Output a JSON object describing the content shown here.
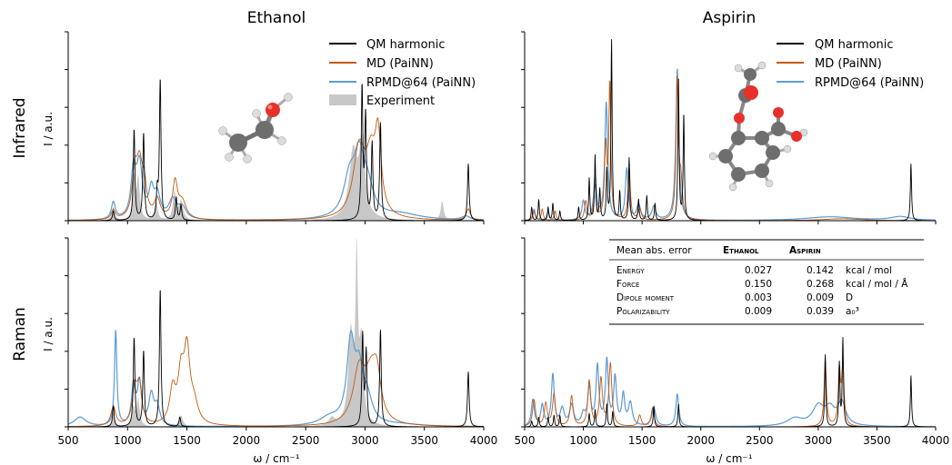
{
  "figure": {
    "column_titles": [
      "Ethanol",
      "Aspirin"
    ],
    "row_labels": [
      "Infrared",
      "Raman"
    ],
    "ylabel": "I / a.u.",
    "xlabel": "ω / cm⁻¹",
    "legend": [
      {
        "label": "QM harmonic",
        "color": "#000000",
        "kind": "line"
      },
      {
        "label": "MD (PaiNN)",
        "color": "#c55a11",
        "kind": "line"
      },
      {
        "label": "RPMD@64 (PaiNN)",
        "color": "#5b9bd5",
        "kind": "line"
      },
      {
        "label": "Experiment",
        "color": "#c8c8c8",
        "kind": "fill"
      }
    ],
    "molecule_icons": [
      "ethanol-molecule",
      "aspirin-molecule"
    ]
  },
  "table": {
    "headers": [
      "Mean abs. error",
      "Ethanol",
      "Aspirin",
      ""
    ],
    "rows": [
      {
        "label": "Energy",
        "ethanol": "0.027",
        "aspirin": "0.142",
        "unit": "kcal / mol"
      },
      {
        "label": "Force",
        "ethanol": "0.150",
        "aspirin": "0.268",
        "unit": "kcal / mol / Å"
      },
      {
        "label": "Dipole moment",
        "ethanol": "0.003",
        "aspirin": "0.009",
        "unit": "D"
      },
      {
        "label": "Polarizability",
        "ethanol": "0.009",
        "aspirin": "0.039",
        "unit": "a₀³"
      }
    ]
  },
  "chart_data": [
    {
      "type": "line",
      "title": "Ethanol",
      "row": "Infrared",
      "xlabel": "",
      "ylabel": "I / a.u.",
      "xlim": [
        500,
        4000
      ],
      "ylim": [
        0,
        1
      ],
      "xticks": [
        500,
        1000,
        1500,
        2000,
        2500,
        3000,
        3500,
        4000
      ],
      "legend_position": "top-right",
      "series": [
        {
          "name": "QM harmonic",
          "color": "#000000",
          "width": 0.9,
          "peaks": [
            [
              880,
              0.05,
              8
            ],
            [
              1055,
              0.48,
              8
            ],
            [
              1135,
              0.46,
              8
            ],
            [
              1250,
              0.14,
              8
            ],
            [
              1275,
              0.74,
              8
            ],
            [
              1410,
              0.12,
              8
            ],
            [
              1450,
              0.08,
              8
            ],
            [
              2975,
              0.69,
              8
            ],
            [
              3005,
              0.54,
              8
            ],
            [
              3060,
              0.4,
              8
            ],
            [
              3130,
              0.51,
              8
            ],
            [
              3870,
              0.3,
              8
            ]
          ]
        },
        {
          "name": "MD (PaiNN)",
          "color": "#c55a11",
          "width": 0.9,
          "peaks": [
            [
              880,
              0.05,
              20
            ],
            [
              1060,
              0.22,
              25
            ],
            [
              1100,
              0.26,
              30
            ],
            [
              1140,
              0.15,
              25
            ],
            [
              1250,
              0.1,
              30
            ],
            [
              1400,
              0.19,
              25
            ],
            [
              1460,
              0.09,
              40
            ],
            [
              2950,
              0.36,
              60
            ],
            [
              3050,
              0.28,
              50
            ],
            [
              3110,
              0.38,
              30
            ],
            [
              3870,
              0.06,
              20
            ]
          ]
        },
        {
          "name": "RPMD@64 (PaiNN)",
          "color": "#5b9bd5",
          "width": 1.2,
          "peaks": [
            [
              880,
              0.09,
              20
            ],
            [
              1050,
              0.24,
              25
            ],
            [
              1100,
              0.28,
              30
            ],
            [
              1200,
              0.14,
              25
            ],
            [
              1250,
              0.12,
              30
            ],
            [
              1380,
              0.1,
              40
            ],
            [
              1460,
              0.06,
              40
            ],
            [
              2870,
              0.2,
              60
            ],
            [
              2950,
              0.28,
              50
            ],
            [
              3020,
              0.15,
              60
            ],
            [
              3300,
              0.03,
              200
            ],
            [
              3850,
              0.02,
              40
            ]
          ]
        },
        {
          "name": "Experiment",
          "color": "#c8c8c8",
          "fill": true,
          "peaks": [
            [
              880,
              0.07,
              15
            ],
            [
              1055,
              0.22,
              12
            ],
            [
              1090,
              0.22,
              15
            ],
            [
              1240,
              0.1,
              15
            ],
            [
              1395,
              0.15,
              15
            ],
            [
              1450,
              0.1,
              20
            ],
            [
              2900,
              0.35,
              40
            ],
            [
              2975,
              0.38,
              30
            ],
            [
              3650,
              0.1,
              15
            ]
          ]
        }
      ]
    },
    {
      "type": "line",
      "title": "Aspirin",
      "row": "Infrared",
      "xlabel": "",
      "ylabel": "",
      "xlim": [
        500,
        4000
      ],
      "ylim": [
        0,
        1
      ],
      "xticks": [
        500,
        1000,
        1500,
        2000,
        2500,
        3000,
        3500,
        4000
      ],
      "legend_position": "top-right",
      "series": [
        {
          "name": "QM harmonic",
          "color": "#000000",
          "width": 0.9,
          "peaks": [
            [
              560,
              0.07,
              6
            ],
            [
              620,
              0.11,
              6
            ],
            [
              700,
              0.07,
              6
            ],
            [
              740,
              0.09,
              6
            ],
            [
              800,
              0.05,
              6
            ],
            [
              960,
              0.07,
              6
            ],
            [
              1050,
              0.22,
              6
            ],
            [
              1100,
              0.34,
              6
            ],
            [
              1140,
              0.16,
              6
            ],
            [
              1200,
              0.26,
              6
            ],
            [
              1240,
              0.95,
              6
            ],
            [
              1310,
              0.15,
              6
            ],
            [
              1390,
              0.33,
              6
            ],
            [
              1470,
              0.11,
              6
            ],
            [
              1540,
              0.13,
              6
            ],
            [
              1610,
              0.09,
              6
            ],
            [
              1810,
              0.74,
              6
            ],
            [
              1855,
              0.56,
              6
            ],
            [
              3790,
              0.3,
              6
            ]
          ]
        },
        {
          "name": "MD (PaiNN)",
          "color": "#c55a11",
          "width": 0.9,
          "peaks": [
            [
              580,
              0.05,
              10
            ],
            [
              650,
              0.06,
              10
            ],
            [
              760,
              0.05,
              10
            ],
            [
              1020,
              0.1,
              12
            ],
            [
              1100,
              0.18,
              12
            ],
            [
              1190,
              0.38,
              12
            ],
            [
              1225,
              0.7,
              10
            ],
            [
              1390,
              0.28,
              12
            ],
            [
              1480,
              0.06,
              15
            ],
            [
              1800,
              0.73,
              12
            ],
            [
              1830,
              0.18,
              15
            ],
            [
              3200,
              0.01,
              200
            ]
          ]
        },
        {
          "name": "RPMD@64 (PaiNN)",
          "color": "#5b9bd5",
          "width": 1.2,
          "peaks": [
            [
              580,
              0.06,
              12
            ],
            [
              700,
              0.05,
              12
            ],
            [
              1000,
              0.1,
              15
            ],
            [
              1100,
              0.22,
              15
            ],
            [
              1195,
              0.62,
              15
            ],
            [
              1370,
              0.27,
              15
            ],
            [
              1470,
              0.08,
              20
            ],
            [
              1600,
              0.07,
              20
            ],
            [
              1800,
              0.8,
              15
            ],
            [
              3100,
              0.02,
              250
            ],
            [
              3700,
              0.02,
              100
            ]
          ]
        }
      ]
    },
    {
      "type": "line",
      "title": "Ethanol",
      "row": "Raman",
      "xlabel": "ω / cm⁻¹",
      "ylabel": "I / a.u.",
      "xlim": [
        500,
        4000
      ],
      "ylim": [
        0,
        1
      ],
      "xticks": [
        500,
        1000,
        1500,
        2000,
        2500,
        3000,
        3500,
        4000
      ],
      "series": [
        {
          "name": "QM harmonic",
          "color": "#000000",
          "width": 0.9,
          "peaks": [
            [
              880,
              0.11,
              8
            ],
            [
              1055,
              0.47,
              8
            ],
            [
              1135,
              0.4,
              8
            ],
            [
              1275,
              0.73,
              8
            ],
            [
              1440,
              0.05,
              8
            ],
            [
              2980,
              0.48,
              8
            ],
            [
              3010,
              0.39,
              8
            ],
            [
              3130,
              0.51,
              8
            ],
            [
              3870,
              0.29,
              8
            ]
          ]
        },
        {
          "name": "MD (PaiNN)",
          "color": "#c55a11",
          "width": 0.9,
          "peaks": [
            [
              880,
              0.1,
              25
            ],
            [
              1060,
              0.18,
              25
            ],
            [
              1100,
              0.2,
              25
            ],
            [
              1380,
              0.18,
              30
            ],
            [
              1450,
              0.24,
              30
            ],
            [
              1500,
              0.37,
              30
            ],
            [
              1560,
              0.1,
              40
            ],
            [
              2950,
              0.28,
              60
            ],
            [
              3050,
              0.22,
              60
            ],
            [
              3100,
              0.2,
              40
            ]
          ]
        },
        {
          "name": "RPMD@64 (PaiNN)",
          "color": "#5b9bd5",
          "width": 1.2,
          "peaks": [
            [
              600,
              0.05,
              60
            ],
            [
              900,
              0.5,
              12
            ],
            [
              1050,
              0.21,
              20
            ],
            [
              1100,
              0.22,
              20
            ],
            [
              1200,
              0.16,
              25
            ],
            [
              1250,
              0.1,
              25
            ],
            [
              2880,
              0.42,
              40
            ],
            [
              2950,
              0.25,
              40
            ],
            [
              3020,
              0.12,
              50
            ],
            [
              2700,
              0.04,
              100
            ],
            [
              3300,
              0.01,
              200
            ]
          ]
        },
        {
          "name": "Experiment",
          "color": "#c8c8c8",
          "fill": true,
          "peaks": [
            [
              880,
              0.08,
              12
            ],
            [
              1050,
              0.1,
              15
            ],
            [
              1090,
              0.14,
              15
            ],
            [
              1450,
              0.06,
              20
            ],
            [
              2880,
              0.48,
              25
            ],
            [
              2930,
              0.83,
              12
            ],
            [
              2970,
              0.42,
              20
            ],
            [
              2720,
              0.04,
              30
            ]
          ]
        }
      ]
    },
    {
      "type": "line",
      "title": "Aspirin",
      "row": "Raman",
      "xlabel": "ω / cm⁻¹",
      "ylabel": "",
      "xlim": [
        500,
        4000
      ],
      "ylim": [
        0,
        1
      ],
      "xticks": [
        500,
        1000,
        1500,
        2000,
        2500,
        3000,
        3500,
        4000
      ],
      "series": [
        {
          "name": "QM harmonic",
          "color": "#000000",
          "width": 0.9,
          "peaks": [
            [
              560,
              0.03,
              6
            ],
            [
              620,
              0.05,
              6
            ],
            [
              700,
              0.05,
              6
            ],
            [
              750,
              0.06,
              6
            ],
            [
              800,
              0.06,
              6
            ],
            [
              1050,
              0.07,
              6
            ],
            [
              1100,
              0.09,
              6
            ],
            [
              1200,
              0.12,
              6
            ],
            [
              1250,
              0.08,
              6
            ],
            [
              1600,
              0.11,
              6
            ],
            [
              1810,
              0.12,
              6
            ],
            [
              3060,
              0.38,
              6
            ],
            [
              3180,
              0.33,
              6
            ],
            [
              3210,
              0.46,
              6
            ],
            [
              3790,
              0.27,
              6
            ]
          ]
        },
        {
          "name": "MD (PaiNN)",
          "color": "#c55a11",
          "width": 0.9,
          "peaks": [
            [
              580,
              0.14,
              15
            ],
            [
              680,
              0.12,
              15
            ],
            [
              750,
              0.17,
              15
            ],
            [
              900,
              0.16,
              15
            ],
            [
              1050,
              0.24,
              15
            ],
            [
              1150,
              0.25,
              15
            ],
            [
              1230,
              0.33,
              15
            ],
            [
              1480,
              0.06,
              15
            ],
            [
              1590,
              0.1,
              15
            ],
            [
              3060,
              0.34,
              12
            ],
            [
              3180,
              0.28,
              12
            ],
            [
              3210,
              0.31,
              12
            ]
          ]
        },
        {
          "name": "RPMD@64 (PaiNN)",
          "color": "#5b9bd5",
          "width": 1.2,
          "peaks": [
            [
              570,
              0.14,
              15
            ],
            [
              650,
              0.11,
              15
            ],
            [
              740,
              0.27,
              15
            ],
            [
              820,
              0.09,
              20
            ],
            [
              900,
              0.11,
              20
            ],
            [
              1000,
              0.06,
              20
            ],
            [
              1050,
              0.2,
              15
            ],
            [
              1120,
              0.31,
              15
            ],
            [
              1200,
              0.34,
              15
            ],
            [
              1270,
              0.25,
              15
            ],
            [
              1340,
              0.16,
              15
            ],
            [
              1400,
              0.12,
              20
            ],
            [
              1600,
              0.1,
              20
            ],
            [
              1800,
              0.17,
              15
            ],
            [
              3000,
              0.1,
              60
            ],
            [
              3100,
              0.08,
              50
            ],
            [
              3200,
              0.12,
              40
            ],
            [
              2800,
              0.04,
              80
            ]
          ]
        }
      ]
    }
  ]
}
